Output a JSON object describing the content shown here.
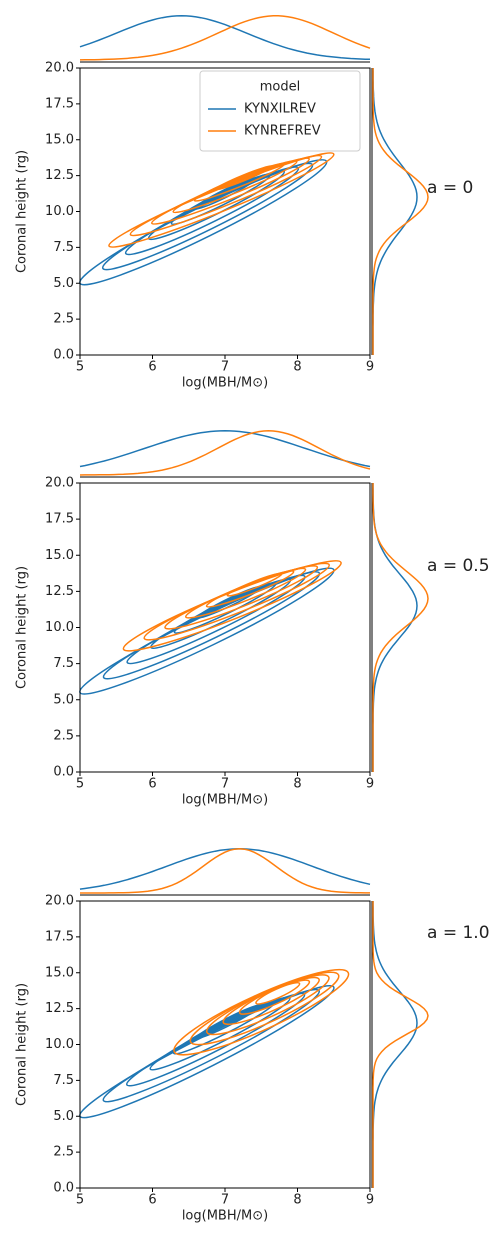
{
  "chart_data": [
    {
      "type": "kde-joint",
      "xlabel": "log(MBH/M⊙)",
      "ylabel": "Coronal height (rg)",
      "annotation": "a = 0",
      "xlim": [
        5,
        9
      ],
      "xticks": [
        5,
        6,
        7,
        8,
        9
      ],
      "ylim": [
        0,
        20
      ],
      "yticks": [
        {
          "value": 0,
          "label": "0.0"
        },
        {
          "value": 2.5,
          "label": "2.5"
        },
        {
          "value": 5,
          "label": "5.0"
        },
        {
          "value": 7.5,
          "label": "7.5"
        },
        {
          "value": 10,
          "label": "10.0"
        },
        {
          "value": 12.5,
          "label": "12.5"
        },
        {
          "value": 15,
          "label": "15.0"
        },
        {
          "value": 17.5,
          "label": "17.5"
        },
        {
          "value": 20,
          "label": "20.0"
        }
      ],
      "legend": "upper right",
      "legend_title": "model",
      "series": [
        {
          "name": "KYNXILREV",
          "color": "#1f77b4"
        },
        {
          "name": "KYNREFREV",
          "color": "#ff7f0e"
        }
      ]
    },
    {
      "type": "kde-joint",
      "xlabel": "log(MBH/M⊙)",
      "ylabel": "Coronal height (rg)",
      "annotation": "a = 0.5",
      "xlim": [
        5,
        9
      ],
      "xticks": [
        5,
        6,
        7,
        8,
        9
      ],
      "ylim": [
        0,
        20
      ],
      "yticks": [
        {
          "value": 0,
          "label": "0.0"
        },
        {
          "value": 2.5,
          "label": "2.5"
        },
        {
          "value": 5,
          "label": "5.0"
        },
        {
          "value": 7.5,
          "label": "7.5"
        },
        {
          "value": 10,
          "label": "10.0"
        },
        {
          "value": 12.5,
          "label": "12.5"
        },
        {
          "value": 15,
          "label": "15.0"
        },
        {
          "value": 17.5,
          "label": "17.5"
        },
        {
          "value": 20,
          "label": "20.0"
        }
      ]
    },
    {
      "type": "kde-joint",
      "xlabel": "log(MBH/M⊙)",
      "ylabel": "Coronal height (rg)",
      "annotation": "a = 1.0",
      "xlim": [
        5,
        9
      ],
      "xticks": [
        5,
        6,
        7,
        8,
        9
      ],
      "ylim": [
        0,
        20
      ],
      "yticks": [
        {
          "value": 0,
          "label": "0.0"
        },
        {
          "value": 2.5,
          "label": "2.5"
        },
        {
          "value": 5,
          "label": "5.0"
        },
        {
          "value": 7.5,
          "label": "7.5"
        },
        {
          "value": 10,
          "label": "10.0"
        },
        {
          "value": 12.5,
          "label": "12.5"
        },
        {
          "value": 15,
          "label": "15.0"
        },
        {
          "value": 17.5,
          "label": "17.5"
        },
        {
          "value": 20,
          "label": "20.0"
        }
      ]
    }
  ]
}
